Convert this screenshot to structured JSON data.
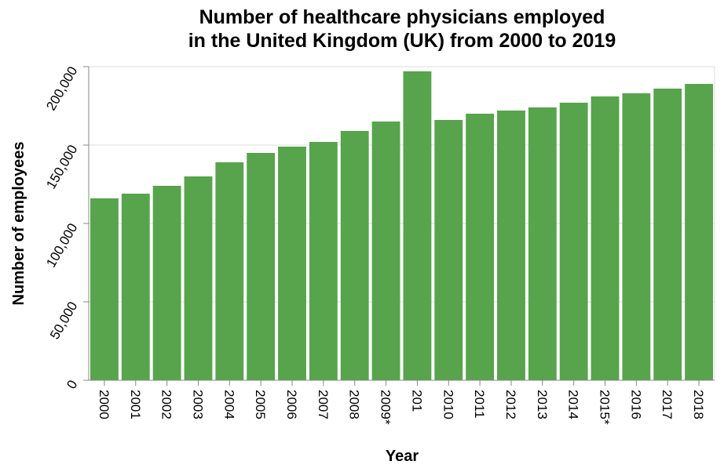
{
  "chart_data": {
    "type": "bar",
    "title": [
      "Number of healthcare physicians employed",
      "in the United Kingdom (UK) from 2000 to 2019"
    ],
    "xlabel": "Year",
    "ylabel": "Number of employees",
    "categories": [
      "2000",
      "2001",
      "2002",
      "2003",
      "2004",
      "2005",
      "2006",
      "2007",
      "2008",
      "2009*",
      "201",
      "2010",
      "2011",
      "2012",
      "2013",
      "2014",
      "2015*",
      "2016",
      "2017",
      "2018"
    ],
    "values": [
      116000,
      119000,
      124000,
      130000,
      139000,
      145000,
      149000,
      152000,
      159000,
      165000,
      197000,
      166000,
      170000,
      172000,
      174000,
      177000,
      181000,
      183000,
      186000,
      189000
    ],
    "ylim": [
      0,
      200000
    ],
    "yticks": [
      0,
      50000,
      100000,
      150000,
      200000
    ],
    "ytick_labels": [
      "0",
      "50,000",
      "100,000",
      "150,000",
      "200,000"
    ],
    "grid": true,
    "bar_color": "#57a44c",
    "legend": "none"
  }
}
